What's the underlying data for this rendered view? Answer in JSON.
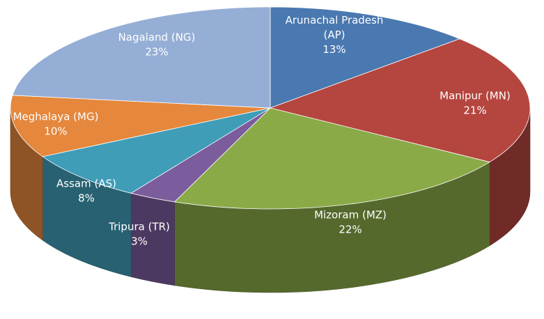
{
  "chart_data": {
    "type": "pie",
    "title": "",
    "slices": [
      {
        "label": "Arunachal Pradesh (AP)",
        "label_lines": [
          "Arunachal Pradesh",
          "(AP)"
        ],
        "value": 13,
        "value_label": "13%",
        "color": "#4a78b0"
      },
      {
        "label": "Manipur (MN)",
        "label_lines": [
          "Manipur (MN)"
        ],
        "value": 21,
        "value_label": "21%",
        "color": "#b5453f"
      },
      {
        "label": "Mizoram (MZ)",
        "label_lines": [
          "Mizoram (MZ)"
        ],
        "value": 22,
        "value_label": "22%",
        "color": "#8aaa48"
      },
      {
        "label": "Tripura (TR)",
        "label_lines": [
          "Tripura (TR)"
        ],
        "value": 3,
        "value_label": "3%",
        "color": "#7b5c9c"
      },
      {
        "label": "Assam (AS)",
        "label_lines": [
          "Assam (AS)"
        ],
        "value": 8,
        "value_label": "8%",
        "color": "#3f9db8"
      },
      {
        "label": "Meghalaya (MG)",
        "label_lines": [
          "Meghalaya (MG)"
        ],
        "value": 10,
        "value_label": "10%",
        "color": "#e5873c"
      },
      {
        "label": "Nagaland (NG)",
        "label_lines": [
          "Nagaland (NG)"
        ],
        "value": 23,
        "value_label": "23%",
        "color": "#95aed6"
      }
    ],
    "style": "3d-pie",
    "legend": "none",
    "data_labels": "inside"
  }
}
